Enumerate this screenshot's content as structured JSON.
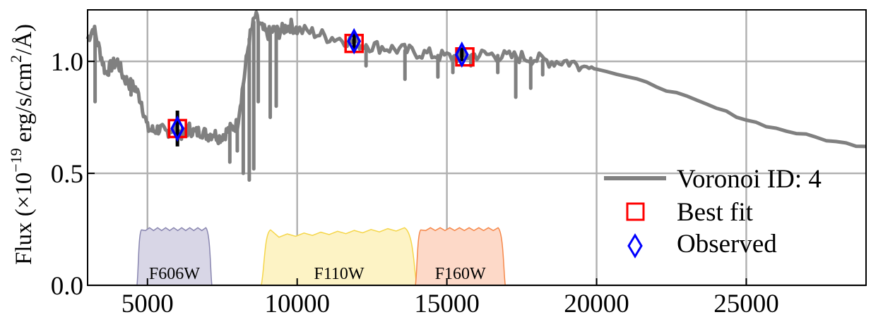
{
  "chart_data": {
    "type": "line",
    "title": "",
    "xlabel": "",
    "ylabel": {
      "prefix": "Flux (×10",
      "exp": "−19",
      "middle": " erg/s/cm",
      "sq": "2",
      "suffix": "/Å)"
    },
    "xlim": [
      3000,
      29000
    ],
    "ylim": [
      0.0,
      1.23
    ],
    "x_ticks": [
      5000,
      10000,
      15000,
      20000,
      25000
    ],
    "x_tick_labels": [
      "5000",
      "10000",
      "15000",
      "20000",
      "25000"
    ],
    "y_ticks": [
      0.0,
      0.5,
      1.0
    ],
    "y_tick_labels": [
      "0.0",
      "0.5",
      "1.0"
    ],
    "grid": true,
    "legend_placement": "lower-right",
    "series": [
      {
        "name": "Voronoi ID: 4",
        "kind": "spectrum",
        "color": "#808080",
        "x": [
          3000,
          3200,
          3400,
          3600,
          3800,
          4000,
          4200,
          4400,
          4600,
          4800,
          5000,
          5200,
          5400,
          5600,
          5800,
          6000,
          6200,
          6400,
          6600,
          6800,
          7000,
          7200,
          7400,
          7600,
          7800,
          8000,
          8200,
          8400,
          8600,
          8800,
          9000,
          9200,
          9400,
          9600,
          9800,
          10000,
          10500,
          11000,
          11500,
          12000,
          12500,
          13000,
          13500,
          14000,
          14500,
          15000,
          15500,
          16000,
          16500,
          17000,
          17500,
          18000,
          18500,
          19000,
          19500,
          20000,
          21000,
          22000,
          23000,
          24000,
          25000,
          26000,
          27000,
          28000,
          29000
        ],
        "y": [
          1.1,
          1.15,
          1.05,
          0.95,
          0.98,
          1.0,
          0.93,
          0.9,
          0.88,
          0.82,
          0.7,
          0.69,
          0.7,
          0.68,
          0.7,
          0.69,
          0.67,
          0.7,
          0.68,
          0.69,
          0.67,
          0.68,
          0.66,
          0.68,
          0.7,
          0.72,
          0.9,
          1.1,
          1.2,
          1.15,
          1.12,
          1.14,
          1.13,
          1.15,
          1.16,
          1.14,
          1.13,
          1.11,
          1.1,
          1.08,
          1.07,
          1.06,
          1.05,
          1.04,
          1.03,
          1.02,
          1.02,
          1.03,
          1.03,
          1.02,
          1.02,
          1.01,
          1.0,
          1.0,
          0.98,
          0.97,
          0.93,
          0.89,
          0.84,
          0.79,
          0.74,
          0.7,
          0.67,
          0.64,
          0.62
        ],
        "absorption_lines": [
          {
            "x": 3250,
            "y": 0.82
          },
          {
            "x": 4450,
            "y": 0.85
          },
          {
            "x": 7750,
            "y": 0.55
          },
          {
            "x": 8000,
            "y": 0.6
          },
          {
            "x": 8200,
            "y": 0.5
          },
          {
            "x": 8400,
            "y": 0.47
          },
          {
            "x": 8550,
            "y": 0.52
          },
          {
            "x": 8700,
            "y": 0.82
          },
          {
            "x": 9100,
            "y": 0.75
          },
          {
            "x": 9300,
            "y": 0.8
          },
          {
            "x": 12300,
            "y": 0.98
          },
          {
            "x": 13600,
            "y": 0.92
          },
          {
            "x": 14700,
            "y": 0.93
          },
          {
            "x": 15200,
            "y": 0.95
          },
          {
            "x": 15800,
            "y": 0.98
          },
          {
            "x": 16700,
            "y": 0.95
          },
          {
            "x": 17300,
            "y": 0.84
          },
          {
            "x": 17800,
            "y": 0.88
          },
          {
            "x": 18200,
            "y": 0.94
          }
        ]
      },
      {
        "name": "Best fit",
        "kind": "square-marker",
        "color": "#ff0000",
        "x": [
          6000,
          11900,
          15600
        ],
        "y": [
          0.7,
          1.08,
          1.02
        ]
      },
      {
        "name": "Observed",
        "kind": "diamond-marker",
        "color": "#0000ff",
        "x": [
          6000,
          11900,
          15500
        ],
        "y": [
          0.7,
          1.09,
          1.03
        ],
        "yerr": [
          0.08,
          0.04,
          0.03
        ]
      }
    ],
    "filters": [
      {
        "name": "F606W",
        "x0": 4650,
        "x1": 7150,
        "peak": 0.26,
        "fill": "#d8d6e6",
        "stroke": "#8986b0"
      },
      {
        "name": "F110W",
        "x0": 8800,
        "x1": 14000,
        "peak": 0.26,
        "fill": "#fdf3c5",
        "stroke": "#f5d64a"
      },
      {
        "name": "F160W",
        "x0": 13950,
        "x1": 16950,
        "peak": 0.26,
        "fill": "#fdd9c8",
        "stroke": "#f5884a"
      }
    ]
  }
}
